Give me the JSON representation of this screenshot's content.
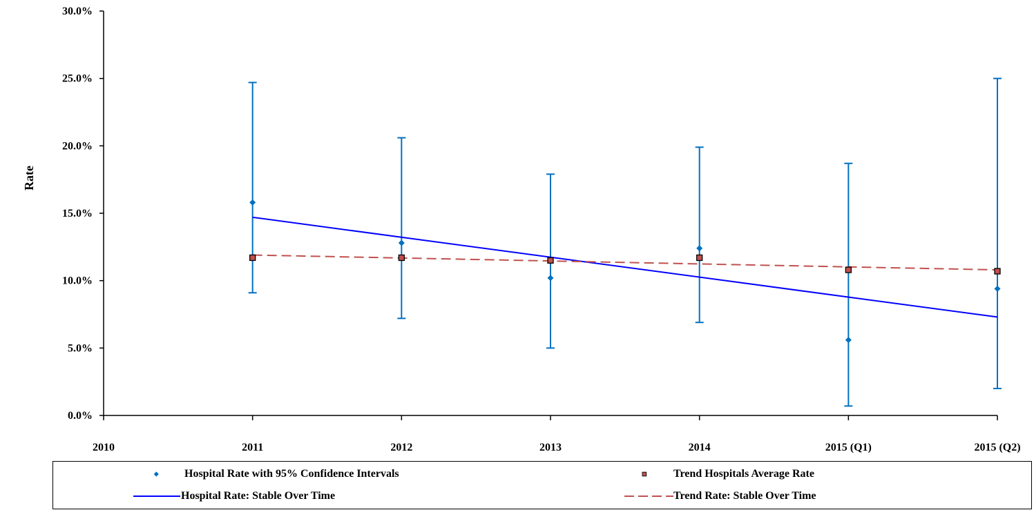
{
  "chart_data": {
    "type": "scatter",
    "ylabel": "Rate",
    "xlabel": "",
    "ylim": [
      0,
      30
    ],
    "ytick_labels": [
      "0.0%",
      "5.0%",
      "10.0%",
      "15.0%",
      "20.0%",
      "25.0%",
      "30.0%"
    ],
    "ytick_values": [
      0,
      5,
      10,
      15,
      20,
      25,
      30
    ],
    "x_categories": [
      "2010",
      "2011",
      "2012",
      "2013",
      "2014",
      "2015 (Q1)",
      "2015 (Q2)"
    ],
    "hospital_rate": {
      "name": "Hospital Rate with 95% Confidence Intervals",
      "color": "#0070C0",
      "points": [
        {
          "x": "2011",
          "y": 15.8,
          "low": 9.1,
          "high": 24.7
        },
        {
          "x": "2012",
          "y": 12.8,
          "low": 7.2,
          "high": 20.6
        },
        {
          "x": "2013",
          "y": 10.2,
          "low": 5.0,
          "high": 17.9
        },
        {
          "x": "2014",
          "y": 12.4,
          "low": 6.9,
          "high": 19.9
        },
        {
          "x": "2015 (Q1)",
          "y": 5.6,
          "low": 0.7,
          "high": 18.7
        },
        {
          "x": "2015 (Q2)",
          "y": 9.4,
          "low": 2.0,
          "high": 25.0
        }
      ]
    },
    "trend_average": {
      "name": "Trend Hospitals Average Rate",
      "color": "#C0504D",
      "points": [
        {
          "x": "2011",
          "y": 11.7
        },
        {
          "x": "2012",
          "y": 11.7
        },
        {
          "x": "2013",
          "y": 11.5
        },
        {
          "x": "2014",
          "y": 11.7
        },
        {
          "x": "2015 (Q1)",
          "y": 10.8
        },
        {
          "x": "2015 (Q2)",
          "y": 10.7
        }
      ]
    },
    "hospital_trend_line": {
      "name": "Hospital Rate: Stable Over Time",
      "color": "#0000FF",
      "from": {
        "x": "2011",
        "y": 14.7
      },
      "to": {
        "x": "2015 (Q2)",
        "y": 7.3
      }
    },
    "trend_rate_line": {
      "name": "Trend Rate: Stable Over Time",
      "color": "#C0504D",
      "from": {
        "x": "2011",
        "y": 11.9
      },
      "to": {
        "x": "2015 (Q2)",
        "y": 10.8
      }
    },
    "legend_position": "bottom",
    "grid": false
  }
}
